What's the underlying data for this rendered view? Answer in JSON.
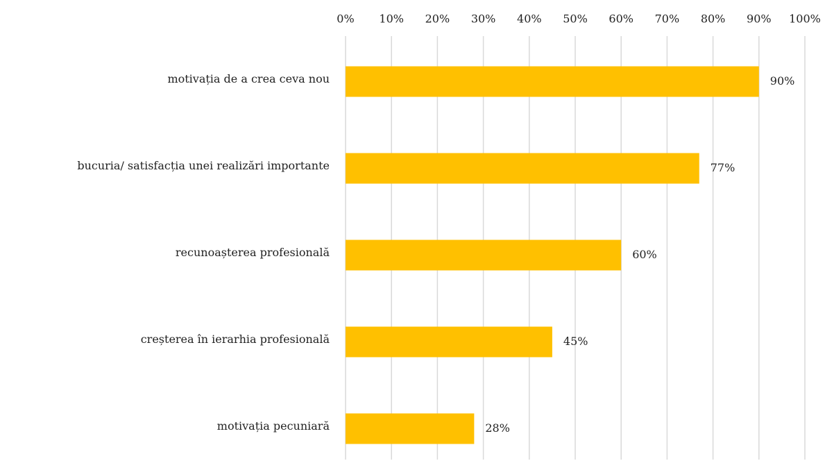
{
  "chart_data": {
    "type": "barh",
    "categories": [
      "motivația de a crea ceva nou",
      "bucuria/ satisfacția unei realizări importante",
      "recunoașterea profesională",
      "creșterea în ierarhia profesională",
      "motivația pecuniară"
    ],
    "values": [
      90,
      77,
      60,
      45,
      28
    ],
    "value_labels": [
      "90%",
      "77%",
      "60%",
      "45%",
      "28%"
    ],
    "color": "#ffc000",
    "xlim": [
      0,
      100
    ],
    "xticks": [
      {
        "value": 0,
        "label": "0%"
      },
      {
        "value": 10,
        "label": "10%"
      },
      {
        "value": 20,
        "label": "20%"
      },
      {
        "value": 30,
        "label": "30%"
      },
      {
        "value": 40,
        "label": "40%"
      },
      {
        "value": 50,
        "label": "50%"
      },
      {
        "value": 60,
        "label": "60%"
      },
      {
        "value": 70,
        "label": "70%"
      },
      {
        "value": 80,
        "label": "80%"
      },
      {
        "value": 90,
        "label": "90%"
      },
      {
        "value": 100,
        "label": "100%"
      }
    ],
    "grid": true
  }
}
